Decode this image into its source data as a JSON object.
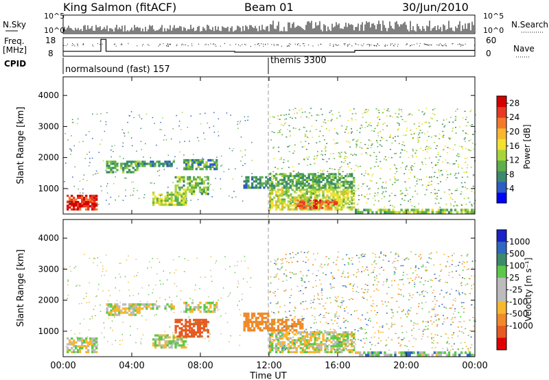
{
  "header": {
    "station": "King Salmon (fitACF)",
    "beam": "Beam 01",
    "date": "30/Jun/2010"
  },
  "labels": {
    "nsky": "N.Sky",
    "nsky_ticks": [
      "10^5",
      "10^0"
    ],
    "nsearch_ticks": [
      "10^5",
      "10^0"
    ],
    "nsearch": "N.Search",
    "freq": "Freq.",
    "freq_unit": "[MHz]",
    "freq_ticks": [
      "18",
      "8"
    ],
    "nave": "Nave",
    "nave_ticks": [
      "60",
      "0"
    ],
    "cpid": "CPID",
    "slant_range": "Slant Range [km]",
    "power_label": "Power [dB]",
    "velocity_label": "Velocity [m s⁻¹]",
    "time_label": "Time UT",
    "range_ticks": [
      "1000",
      "2000",
      "3000",
      "4000"
    ]
  },
  "programs": [
    {
      "name": "normalsound (fast) 157",
      "start_hour": 0
    },
    {
      "name": "themis 3300",
      "start_hour": 12
    }
  ],
  "time_ticks": [
    "00:00",
    "04:00",
    "08:00",
    "12:00",
    "16:00",
    "20:00",
    "00:00"
  ],
  "colors": {
    "power": [
      "#0000ff",
      "#2b5cc8",
      "#3b8a6e",
      "#5fb04a",
      "#a8d43a",
      "#f3e030",
      "#f7b731",
      "#f47a2a",
      "#e83a22",
      "#d40000"
    ],
    "velocity": [
      "#1a22c8",
      "#2f68c0",
      "#3d8a6b",
      "#5cc84a",
      "#bcbcbc",
      "#bcbcbc",
      "#f7b731",
      "#f08a2a",
      "#e85a22",
      "#e00000"
    ]
  },
  "chart_data": [
    {
      "type": "heatmap",
      "name": "Power",
      "xlabel": "Time UT",
      "ylabel": "Slant Range [km]",
      "xlim_hours": [
        0,
        24
      ],
      "ylim_km": [
        180,
        4600
      ],
      "colorbar_label": "Power [dB]",
      "colorbar_ticks": [
        4,
        8,
        12,
        16,
        20,
        24,
        28
      ],
      "colorbar_range": [
        0,
        30
      ],
      "echo_regions": [
        {
          "t": [
            0.2,
            2.0
          ],
          "r": [
            300,
            800
          ],
          "value": 26
        },
        {
          "t": [
            0.2,
            2.0
          ],
          "r": [
            400,
            600
          ],
          "value": 29
        },
        {
          "t": [
            2.5,
            4.5
          ],
          "r": [
            1500,
            1900
          ],
          "value": 10
        },
        {
          "t": [
            4.2,
            6.5
          ],
          "r": [
            1700,
            1900
          ],
          "value": 8
        },
        {
          "t": [
            5.2,
            7.2
          ],
          "r": [
            450,
            900
          ],
          "value": 14
        },
        {
          "t": [
            6.5,
            8.5
          ],
          "r": [
            800,
            1400
          ],
          "value": 12
        },
        {
          "t": [
            7.0,
            9.0
          ],
          "r": [
            1600,
            1950
          ],
          "value": 9
        },
        {
          "t": [
            10.5,
            12.0
          ],
          "r": [
            1000,
            1400
          ],
          "value": 8
        },
        {
          "t": [
            12.0,
            17.0
          ],
          "r": [
            300,
            1000
          ],
          "value": 15
        },
        {
          "t": [
            13.5,
            16.0
          ],
          "r": [
            350,
            650
          ],
          "value": 24
        },
        {
          "t": [
            12.0,
            17.0
          ],
          "r": [
            1000,
            1500
          ],
          "value": 10
        },
        {
          "t": [
            17.0,
            24.0
          ],
          "r": [
            200,
            350
          ],
          "value": 12
        }
      ]
    },
    {
      "type": "heatmap",
      "name": "Velocity",
      "xlabel": "Time UT",
      "ylabel": "Slant Range [km]",
      "xlim_hours": [
        0,
        24
      ],
      "ylim_km": [
        180,
        4600
      ],
      "colorbar_label": "Velocity [m s⁻¹]",
      "colorbar_ticks": [
        1000,
        500,
        100,
        25,
        -25,
        -100,
        -500,
        -1000
      ],
      "echo_regions": [
        {
          "t": [
            0.2,
            2.0
          ],
          "r": [
            300,
            800
          ],
          "value": 0
        },
        {
          "t": [
            2.5,
            4.5
          ],
          "r": [
            1500,
            1900
          ],
          "value": 0
        },
        {
          "t": [
            4.2,
            6.5
          ],
          "r": [
            1700,
            1900
          ],
          "value": 0
        },
        {
          "t": [
            5.2,
            7.2
          ],
          "r": [
            450,
            900
          ],
          "value": 0
        },
        {
          "t": [
            6.5,
            8.5
          ],
          "r": [
            800,
            1400
          ],
          "value": -700
        },
        {
          "t": [
            7.0,
            9.0
          ],
          "r": [
            1600,
            1950
          ],
          "value": 0
        },
        {
          "t": [
            10.5,
            12.0
          ],
          "r": [
            1000,
            1600
          ],
          "value": -400
        },
        {
          "t": [
            12.0,
            14.0
          ],
          "r": [
            1000,
            1400
          ],
          "value": -200
        },
        {
          "t": [
            12.0,
            17.0
          ],
          "r": [
            300,
            1000
          ],
          "value": 0
        },
        {
          "t": [
            17.0,
            24.0
          ],
          "r": [
            200,
            350
          ],
          "value": 50
        }
      ]
    },
    {
      "type": "line",
      "name": "Frequency",
      "unit": "MHz",
      "ylim": [
        8,
        18
      ],
      "segments": [
        {
          "t": [
            0,
            2.2
          ],
          "value": 10.5
        },
        {
          "t": [
            2.2,
            2.5
          ],
          "value": 17.5
        },
        {
          "t": [
            2.5,
            10.0
          ],
          "value": 10.5
        },
        {
          "t": [
            10.0,
            12.0
          ],
          "value": 10.0
        },
        {
          "t": [
            12.0,
            17.0
          ],
          "value": 10.0
        },
        {
          "t": [
            17.0,
            24.0
          ],
          "value": 11.0
        }
      ]
    },
    {
      "type": "line",
      "name": "Noise",
      "ylim_log": [
        0,
        5
      ]
    }
  ]
}
